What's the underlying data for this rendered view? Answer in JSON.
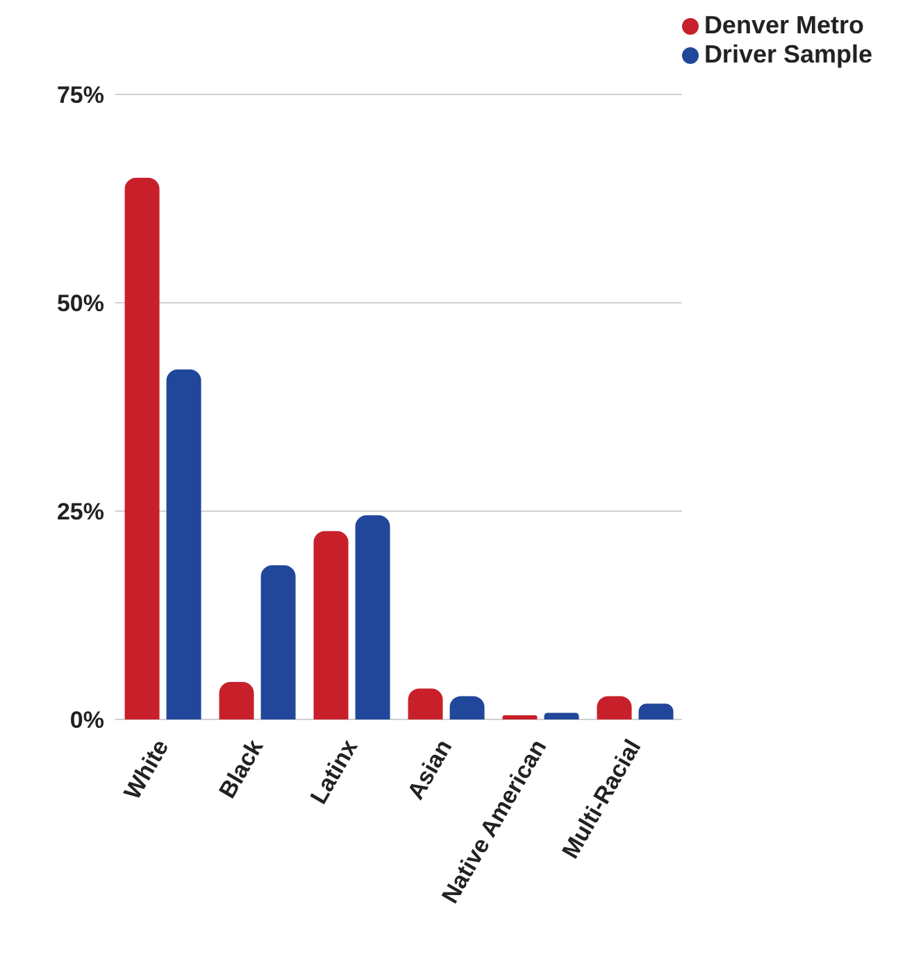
{
  "chart_data": {
    "type": "bar",
    "categories": [
      "White",
      "Black",
      "Latinx",
      "Asian",
      "Native American",
      "Multi-Racial"
    ],
    "series": [
      {
        "name": "Denver Metro",
        "color": "#c8202a",
        "values": [
          65,
          4.5,
          22.6,
          3.7,
          0.5,
          2.8
        ]
      },
      {
        "name": "Driver Sample",
        "color": "#21479b",
        "values": [
          42,
          18.5,
          24.5,
          2.8,
          0.8,
          1.9
        ]
      }
    ],
    "ylim": [
      0,
      75
    ],
    "yticks": [
      {
        "value": 0,
        "label": "0%"
      },
      {
        "value": 25,
        "label": "25%"
      },
      {
        "value": 50,
        "label": "50%"
      },
      {
        "value": 75,
        "label": "75%"
      }
    ],
    "grid": "y",
    "legend": "top right"
  }
}
